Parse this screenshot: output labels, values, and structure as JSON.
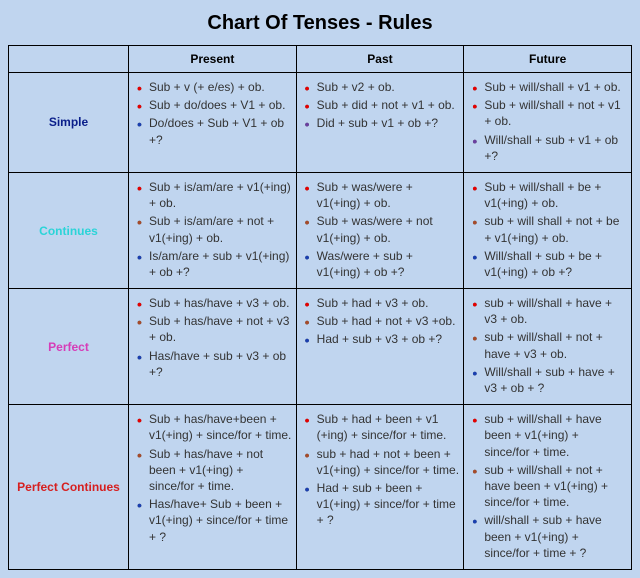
{
  "title": "Chart Of Tenses - Rules",
  "colors": {
    "background": "#c0d5ef",
    "border": "#000000",
    "header_text": "#000000",
    "bullet_red": "#e60000",
    "bullet_brown": "#a64b2a",
    "bullet_blue": "#1a3fb0",
    "bullet_purple": "#6a3fa0",
    "text_body": "#333333",
    "label_simple": "#0a1e8a",
    "label_continues": "#2bd4d8",
    "label_perfect": "#d63cb8",
    "label_perfect_continues": "#d61f1f"
  },
  "columns": [
    "",
    "Present",
    "Past",
    "Future"
  ],
  "rows": [
    {
      "label": "Simple",
      "label_color": "#0a1e8a",
      "cells": [
        [
          {
            "bullet": "#e60000",
            "text": "Sub + v (+ e/es) + ob."
          },
          {
            "bullet": "#e60000",
            "text": "Sub + do/does + V1 + ob."
          },
          {
            "bullet": "#1a3fb0",
            "text": "Do/does + Sub + V1 + ob +?"
          }
        ],
        [
          {
            "bullet": "#e60000",
            "text": "Sub + v2 + ob."
          },
          {
            "bullet": "#e60000",
            "text": "Sub + did + not + v1 + ob."
          },
          {
            "bullet": "#6a3fa0",
            "text": "Did + sub + v1 + ob +?"
          }
        ],
        [
          {
            "bullet": "#e60000",
            "text": "Sub + will/shall + v1 + ob."
          },
          {
            "bullet": "#e60000",
            "text": "Sub + will/shall + not + v1 + ob."
          },
          {
            "bullet": "#6a3fa0",
            "text": "Will/shall + sub + v1 + ob +?"
          }
        ]
      ]
    },
    {
      "label": "Continues",
      "label_color": "#2bd4d8",
      "cells": [
        [
          {
            "bullet": "#e60000",
            "text": "Sub + is/am/are + v1(+ing) + ob."
          },
          {
            "bullet": "#a64b2a",
            "text": "Sub + is/am/are + not + v1(+ing) + ob."
          },
          {
            "bullet": "#1a3fb0",
            "text": "Is/am/are + sub + v1(+ing) + ob +?"
          }
        ],
        [
          {
            "bullet": "#e60000",
            "text": "Sub + was/were + v1(+ing) + ob."
          },
          {
            "bullet": "#a64b2a",
            "text": "Sub + was/were + not v1(+ing) + ob."
          },
          {
            "bullet": "#1a3fb0",
            "text": "Was/were + sub + v1(+ing) + ob +?"
          }
        ],
        [
          {
            "bullet": "#e60000",
            "text": "Sub + will/shall + be + v1(+ing) + ob."
          },
          {
            "bullet": "#a64b2a",
            "text": "sub + will shall + not + be + v1(+ing) + ob."
          },
          {
            "bullet": "#1a3fb0",
            "text": "Will/shall + sub + be + v1(+ing) + ob +?"
          }
        ]
      ]
    },
    {
      "label": "Perfect",
      "label_color": "#d63cb8",
      "cells": [
        [
          {
            "bullet": "#e60000",
            "text": "Sub + has/have + v3 + ob."
          },
          {
            "bullet": "#a64b2a",
            "text": "Sub + has/have + not + v3 + ob."
          },
          {
            "bullet": "#1a3fb0",
            "text": "Has/have + sub + v3 + ob +?"
          }
        ],
        [
          {
            "bullet": "#e60000",
            "text": "Sub + had + v3 + ob."
          },
          {
            "bullet": "#a64b2a",
            "text": "Sub + had + not + v3 +ob."
          },
          {
            "bullet": "#1a3fb0",
            "text": "Had + sub + v3 + ob +?"
          }
        ],
        [
          {
            "bullet": "#e60000",
            "text": "sub + will/shall + have + v3 + ob."
          },
          {
            "bullet": "#a64b2a",
            "text": "sub + will/shall + not + have + v3 + ob."
          },
          {
            "bullet": "#1a3fb0",
            "text": "Will/shall + sub + have + v3 + ob + ?"
          }
        ]
      ]
    },
    {
      "label": "Perfect Continues",
      "label_color": "#d61f1f",
      "cells": [
        [
          {
            "bullet": "#e60000",
            "text": "Sub + has/have+been + v1(+ing) + since/for + time."
          },
          {
            "bullet": "#a64b2a",
            "text": "Sub + has/have + not been + v1(+ing) + since/for + time."
          },
          {
            "bullet": "#1a3fb0",
            "text": "Has/have+ Sub + been + v1(+ing) + since/for + time + ?"
          }
        ],
        [
          {
            "bullet": "#e60000",
            "text": "Sub + had + been + v1 (+ing) + since/for + time."
          },
          {
            "bullet": "#a64b2a",
            "text": "sub + had + not + been + v1(+ing) + since/for + time."
          },
          {
            "bullet": "#1a3fb0",
            "text": "Had + sub + been + v1(+ing) + since/for + time + ?"
          }
        ],
        [
          {
            "bullet": "#e60000",
            "text": "sub + will/shall + have been + v1(+ing) + since/for + time."
          },
          {
            "bullet": "#a64b2a",
            "text": "sub + will/shall + not + have been + v1(+ing) + since/for + time."
          },
          {
            "bullet": "#1a3fb0",
            "text": "will/shall + sub + have been + v1(+ing) + since/for + time + ?"
          }
        ]
      ]
    }
  ]
}
